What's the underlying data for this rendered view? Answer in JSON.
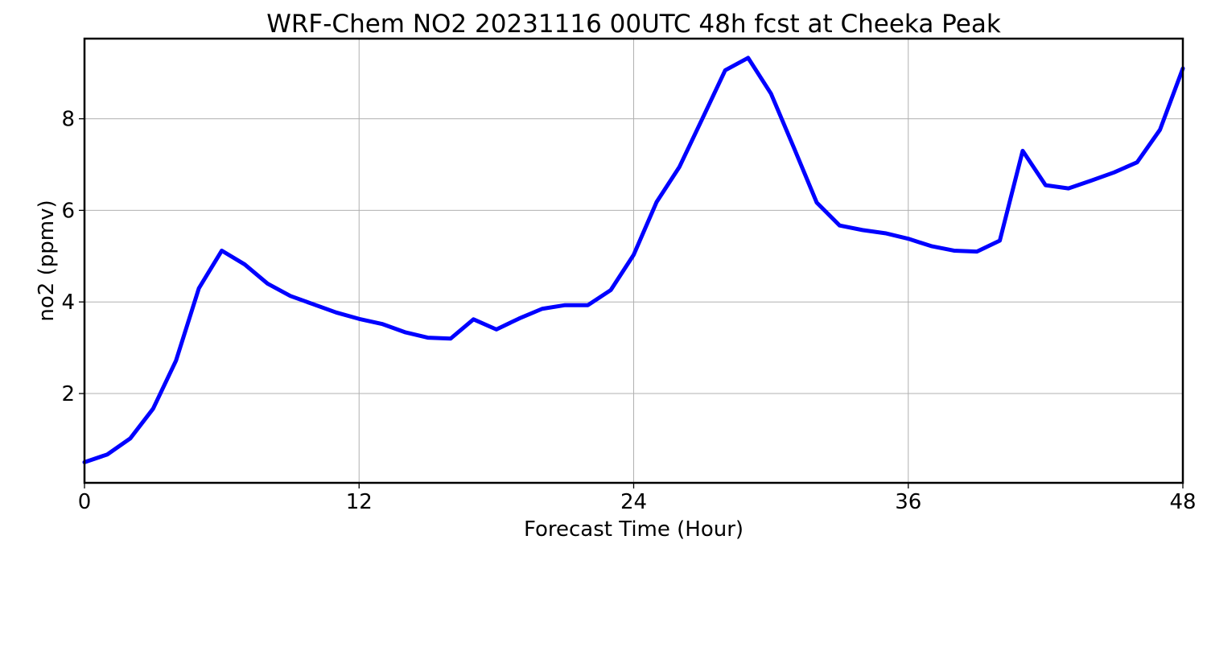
{
  "chart_data": {
    "type": "line",
    "title": "WRF-Chem NO2  20231116 00UTC 48h fcst at Cheeka Peak",
    "xlabel": "Forecast Time (Hour)",
    "ylabel": "no2  (ppmv)",
    "xlim": [
      0,
      48
    ],
    "ylim": [
      0.05,
      9.75
    ],
    "xticks": [
      0,
      12,
      24,
      36,
      48
    ],
    "yticks": [
      2,
      4,
      6,
      8
    ],
    "grid": true,
    "legend": "none",
    "series": [
      {
        "color": "#0000ff",
        "x": [
          0,
          1,
          2,
          3,
          4,
          5,
          6,
          7,
          8,
          9,
          10,
          11,
          12,
          13,
          14,
          15,
          16,
          17,
          18,
          19,
          20,
          21,
          22,
          23,
          24,
          25,
          26,
          27,
          28,
          29,
          30,
          31,
          32,
          33,
          34,
          35,
          36,
          37,
          38,
          39,
          40,
          41,
          42,
          43,
          44,
          45,
          46,
          47,
          48
        ],
        "y": [
          0.5,
          0.67,
          1.02,
          1.67,
          2.72,
          4.3,
          5.12,
          4.82,
          4.4,
          4.13,
          3.95,
          3.77,
          3.63,
          3.52,
          3.34,
          3.22,
          3.2,
          3.62,
          3.4,
          3.64,
          3.85,
          3.93,
          3.93,
          4.26,
          5.03,
          6.18,
          6.95,
          8.0,
          9.06,
          9.33,
          8.55,
          7.37,
          6.17,
          5.67,
          5.57,
          5.5,
          5.38,
          5.22,
          5.12,
          5.1,
          5.34,
          7.3,
          6.55,
          6.48,
          6.65,
          6.83,
          7.05,
          7.76,
          9.1
        ]
      }
    ]
  }
}
